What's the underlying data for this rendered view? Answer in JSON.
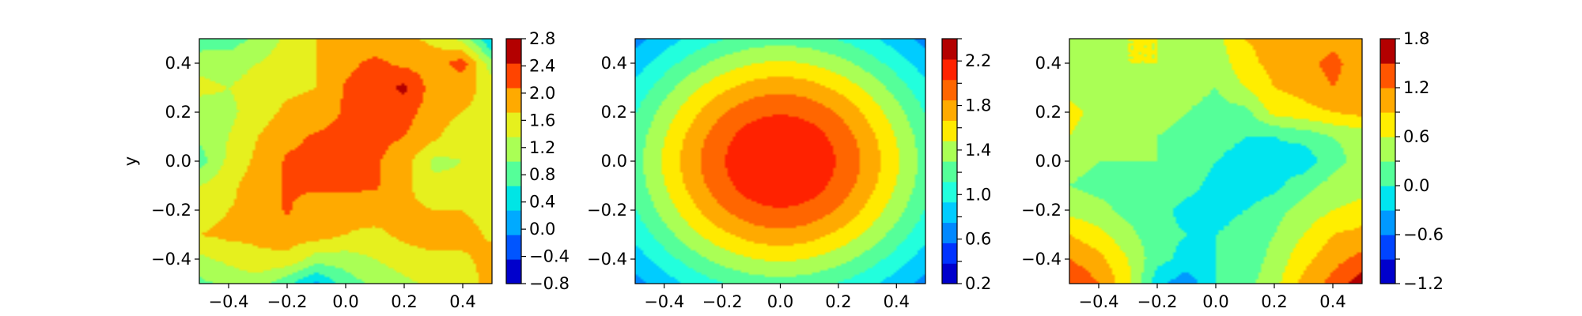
{
  "chart_data": [
    {
      "type": "heatmap",
      "subtype": "filled-contour",
      "xlabel": "",
      "ylabel": "y",
      "xlim": [
        -0.5,
        0.5
      ],
      "ylim": [
        -0.5,
        0.5
      ],
      "xticks": [
        -0.4,
        -0.2,
        0.0,
        0.2,
        0.4
      ],
      "yticks": [
        -0.4,
        -0.2,
        0.0,
        0.2,
        0.4
      ],
      "xtick_labels": [
        "−0.4",
        "−0.2",
        "0.0",
        "0.2",
        "0.4"
      ],
      "ytick_labels": [
        "−0.4",
        "−0.2",
        "0.0",
        "0.2",
        "0.4"
      ],
      "colorbar": {
        "levels": [
          -0.8,
          -0.4,
          0.0,
          0.4,
          0.8,
          1.2,
          1.6,
          2.0,
          2.4,
          2.8
        ],
        "tick_labels": [
          "−0.8",
          "−0.4",
          "0.0",
          "0.4",
          "0.8",
          "1.2",
          "1.6",
          "2.0",
          "2.4",
          "2.8"
        ],
        "colors": [
          "#0000cc",
          "#0055ff",
          "#00aaff",
          "#00e5e5",
          "#55ff99",
          "#aaff55",
          "#e6f01e",
          "#ffaa00",
          "#ff4400",
          "#b30000"
        ]
      },
      "grid": false,
      "x": [
        -0.5,
        -0.4,
        -0.3,
        -0.2,
        -0.1,
        0.0,
        0.1,
        0.2,
        0.3,
        0.4,
        0.5
      ],
      "y": [
        -0.5,
        -0.4,
        -0.3,
        -0.2,
        -0.1,
        0.0,
        0.1,
        0.2,
        0.3,
        0.4,
        0.5
      ],
      "z": [
        [
          1.1,
          1.3,
          1.4,
          0.9,
          0.3,
          1.0,
          1.3,
          1.5,
          1.7,
          1.6,
          2.3
        ],
        [
          1.5,
          1.7,
          1.9,
          1.9,
          1.4,
          1.4,
          1.6,
          1.8,
          1.9,
          1.9,
          2.2
        ],
        [
          2.0,
          2.1,
          2.1,
          2.2,
          2.2,
          2.0,
          1.9,
          2.1,
          2.2,
          2.2,
          1.9
        ],
        [
          1.8,
          2.0,
          2.1,
          2.45,
          2.1,
          2.1,
          2.2,
          2.1,
          2.0,
          2.0,
          1.8
        ],
        [
          1.6,
          1.9,
          2.2,
          2.45,
          2.5,
          2.5,
          2.45,
          2.1,
          1.7,
          1.7,
          1.6
        ],
        [
          1.0,
          1.7,
          2.1,
          2.45,
          2.5,
          2.5,
          2.45,
          2.2,
          1.5,
          1.6,
          1.6
        ],
        [
          1.3,
          1.6,
          2.0,
          2.3,
          2.45,
          2.5,
          2.5,
          2.4,
          2.1,
          1.7,
          1.6
        ],
        [
          1.4,
          1.5,
          1.8,
          2.1,
          2.2,
          2.45,
          2.5,
          2.55,
          2.2,
          2.0,
          1.9
        ],
        [
          1.7,
          1.6,
          1.8,
          1.9,
          2.0,
          2.45,
          2.6,
          2.9,
          2.2,
          2.1,
          1.9
        ],
        [
          1.5,
          1.4,
          1.6,
          1.8,
          2.0,
          2.3,
          2.5,
          2.3,
          2.2,
          2.6,
          1.3
        ],
        [
          0.9,
          1.0,
          1.3,
          1.7,
          2.0,
          2.1,
          2.1,
          2.1,
          1.9,
          1.5,
          0.3
        ]
      ]
    },
    {
      "type": "heatmap",
      "subtype": "filled-contour",
      "xlabel": "",
      "ylabel": "",
      "xlim": [
        -0.5,
        0.5
      ],
      "ylim": [
        -0.5,
        0.5
      ],
      "xticks": [
        -0.4,
        -0.2,
        0.0,
        0.2,
        0.4
      ],
      "yticks": [
        -0.4,
        -0.2,
        0.0,
        0.2,
        0.4
      ],
      "xtick_labels": [
        "−0.4",
        "−0.2",
        "0.0",
        "0.2",
        "0.4"
      ],
      "ytick_labels": [
        "−0.4",
        "−0.2",
        "0.0",
        "0.2",
        "0.4"
      ],
      "colorbar": {
        "levels": [
          0.2,
          0.4,
          0.6,
          0.8,
          1.0,
          1.2,
          1.4,
          1.6,
          1.8,
          2.0,
          2.2,
          2.4
        ],
        "tick_labels": [
          "0.2",
          "",
          "0.6",
          "",
          "1.0",
          "",
          "1.4",
          "",
          "1.8",
          "",
          "2.2",
          ""
        ],
        "colors": [
          "#0000cc",
          "#0033ff",
          "#0088ff",
          "#00ccff",
          "#22ffdd",
          "#55ff99",
          "#aaff55",
          "#ffea00",
          "#ffaa00",
          "#ff6600",
          "#ff2200",
          "#b30000"
        ]
      },
      "grid": false,
      "field": "radial",
      "center": [
        0.0,
        0.0
      ],
      "peak": 2.35,
      "decay": 2.5
    },
    {
      "type": "heatmap",
      "subtype": "filled-contour",
      "xlabel": "",
      "ylabel": "",
      "xlim": [
        -0.5,
        0.5
      ],
      "ylim": [
        -0.5,
        0.5
      ],
      "xticks": [
        -0.4,
        -0.2,
        0.0,
        0.2,
        0.4
      ],
      "yticks": [
        -0.4,
        -0.2,
        0.0,
        0.2,
        0.4
      ],
      "xtick_labels": [
        "−0.4",
        "−0.2",
        "0.0",
        "0.2",
        "0.4"
      ],
      "ytick_labels": [
        "−0.4",
        "−0.2",
        "0.0",
        "0.2",
        "0.4"
      ],
      "colorbar": {
        "levels": [
          -1.2,
          -0.9,
          -0.6,
          -0.3,
          0.0,
          0.3,
          0.6,
          0.9,
          1.2,
          1.5,
          1.8
        ],
        "tick_labels": [
          "−1.2",
          "",
          "−0.6",
          "",
          "0.0",
          "",
          "0.6",
          "",
          "1.2",
          "",
          "1.8"
        ],
        "colors": [
          "#0000cc",
          "#0044ff",
          "#0099ff",
          "#00e5f0",
          "#55ff99",
          "#aaff55",
          "#ffee00",
          "#ffaa00",
          "#ff5500",
          "#b30000"
        ]
      },
      "grid": false,
      "x": [
        -0.5,
        -0.4,
        -0.3,
        -0.2,
        -0.1,
        0.0,
        0.1,
        0.2,
        0.3,
        0.4,
        0.5
      ],
      "y": [
        -0.5,
        -0.4,
        -0.3,
        -0.2,
        -0.1,
        0.0,
        0.1,
        0.2,
        0.3,
        0.4,
        0.5
      ],
      "z": [
        [
          1.5,
          1.2,
          0.7,
          -0.2,
          -0.5,
          0.0,
          0.2,
          0.5,
          1.0,
          1.3,
          1.7
        ],
        [
          1.2,
          1.0,
          0.6,
          0.1,
          -0.1,
          0.0,
          0.1,
          0.4,
          0.8,
          1.1,
          1.3
        ],
        [
          0.9,
          0.7,
          0.4,
          0.1,
          0.0,
          0.0,
          0.1,
          0.3,
          0.6,
          0.9,
          1.0
        ],
        [
          0.5,
          0.4,
          0.2,
          0.1,
          -0.1,
          -0.1,
          0.0,
          0.2,
          0.4,
          0.6,
          0.7
        ],
        [
          0.3,
          0.2,
          0.2,
          0.2,
          0.1,
          -0.1,
          -0.2,
          -0.1,
          0.2,
          0.4,
          0.5
        ],
        [
          0.4,
          0.3,
          0.3,
          0.3,
          0.2,
          0.0,
          -0.1,
          -0.1,
          -0.2,
          0.2,
          0.4
        ],
        [
          0.6,
          0.4,
          0.4,
          0.3,
          0.2,
          0.1,
          0.0,
          0.0,
          0.1,
          0.3,
          0.4
        ],
        [
          0.7,
          0.5,
          0.4,
          0.4,
          0.3,
          0.2,
          0.2,
          0.7,
          0.8,
          0.9,
          1.0
        ],
        [
          0.5,
          0.4,
          0.5,
          0.5,
          0.4,
          0.3,
          0.6,
          0.9,
          1.0,
          1.2,
          1.0
        ],
        [
          0.4,
          0.5,
          0.6,
          0.6,
          0.5,
          0.4,
          0.8,
          1.0,
          1.1,
          1.3,
          1.0
        ],
        [
          0.3,
          0.5,
          0.6,
          0.6,
          0.6,
          0.5,
          0.9,
          1.0,
          1.0,
          1.1,
          1.0
        ]
      ]
    }
  ]
}
